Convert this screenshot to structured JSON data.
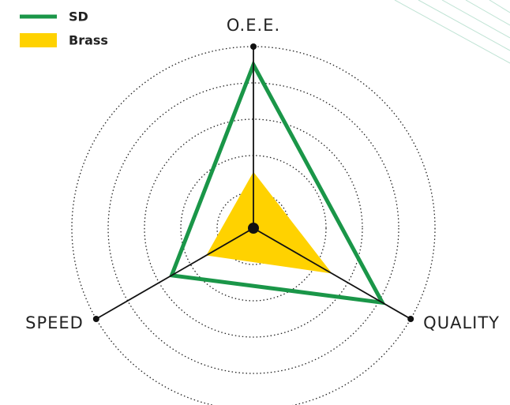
{
  "chart_data": {
    "type": "radar",
    "categories": [
      "O.E.E.",
      "QUALITY",
      "SPEED"
    ],
    "series": [
      {
        "name": "SD",
        "color": "#1a9648",
        "values": [
          4.5,
          4.1,
          2.6
        ]
      },
      {
        "name": "Brass",
        "color": "#ffd200",
        "values": [
          1.55,
          2.5,
          1.5
        ]
      }
    ],
    "rlim": [
      0,
      5
    ],
    "rticks": [
      1,
      2,
      3,
      4,
      5
    ],
    "grid": true,
    "legend": "top-left"
  }
}
